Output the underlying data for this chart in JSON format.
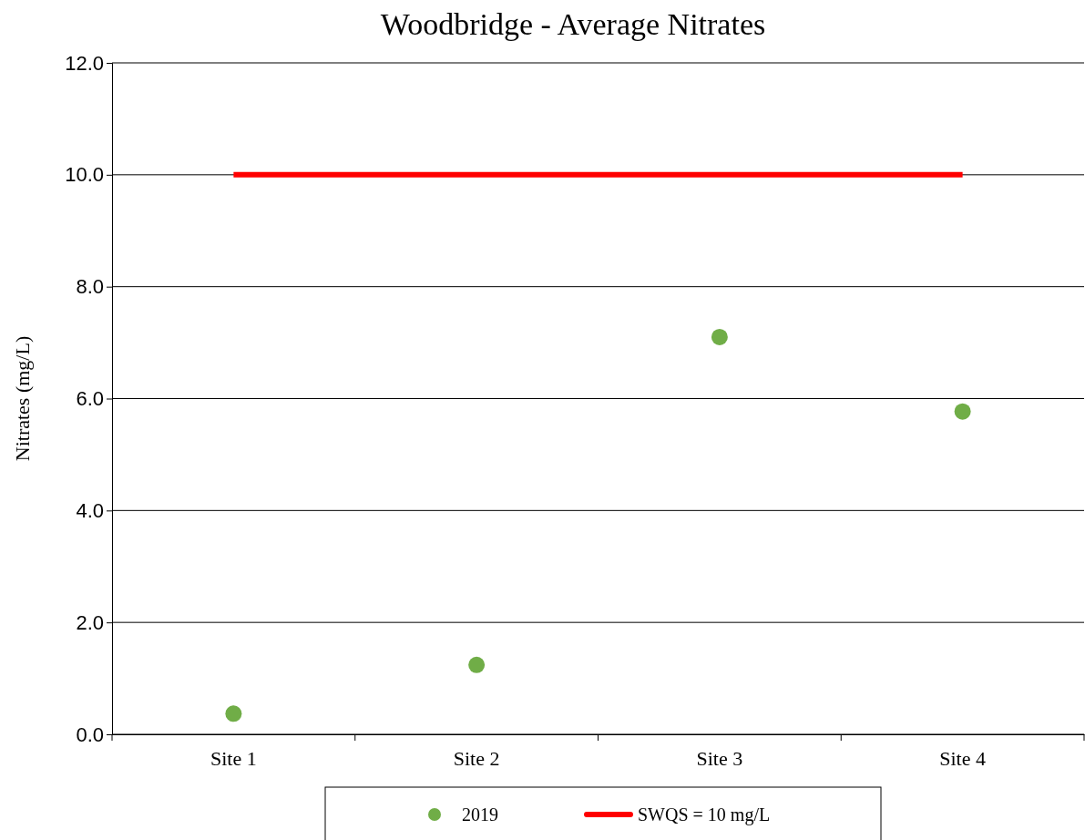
{
  "chart_data": {
    "type": "scatter",
    "title": "Woodbridge - Average Nitrates",
    "ylabel": "Nitrates (mg/L)",
    "categories": [
      "Site 1",
      "Site 2",
      "Site 3",
      "Site 4"
    ],
    "series": [
      {
        "name": "2019",
        "color": "#70ad47",
        "marker": "circle",
        "values": [
          0.37,
          1.24,
          7.1,
          5.77
        ]
      },
      {
        "name": "SWQS = 10 mg/L",
        "type": "line",
        "marker": "none",
        "color": "#ff0000",
        "values": [
          10,
          10,
          10,
          10
        ]
      }
    ],
    "ylim": [
      0,
      12
    ],
    "yticks": [
      {
        "value": 0,
        "label": "0.0"
      },
      {
        "value": 2,
        "label": "2.0"
      },
      {
        "value": 4,
        "label": "4.0"
      },
      {
        "value": 6,
        "label": "6.0"
      },
      {
        "value": 8,
        "label": "8.0"
      },
      {
        "value": 10,
        "label": "10.0"
      },
      {
        "value": 12,
        "label": "12.0"
      }
    ],
    "grid": "y",
    "legend": "bottom",
    "line_style": "solid"
  }
}
